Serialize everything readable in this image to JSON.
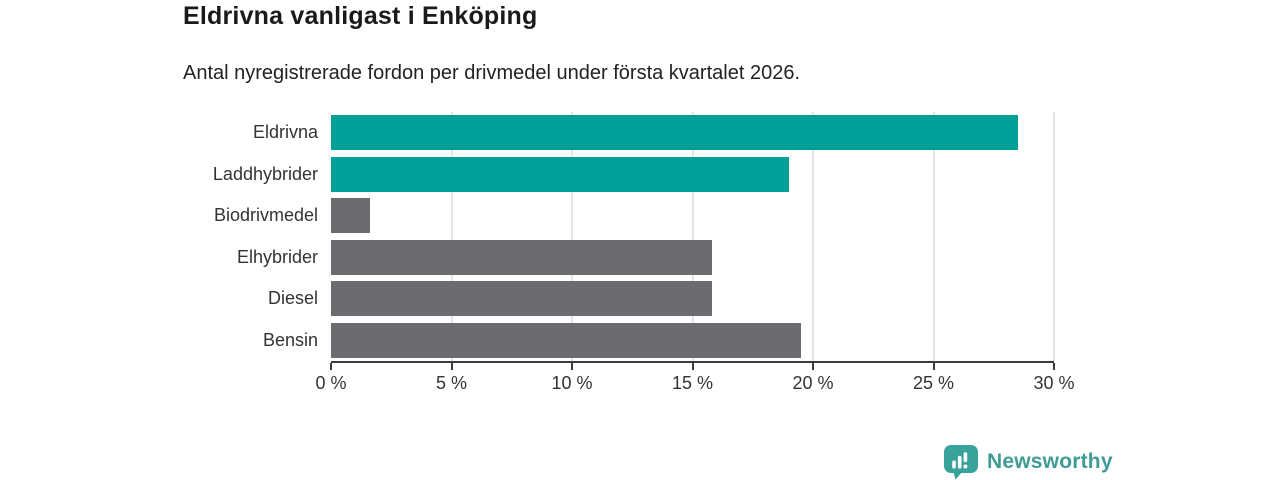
{
  "header": {
    "title": "Eldrivna vanligast i Enköping",
    "subtitle": "Antal nyregistrerade fordon per drivmedel under första kvartalet 2026."
  },
  "chart_data": {
    "type": "bar",
    "orientation": "horizontal",
    "title": "Eldrivna vanligast i Enköping",
    "subtitle": "Antal nyregistrerade fordon per drivmedel under första kvartalet 2026.",
    "categories": [
      "Eldrivna",
      "Laddhybrider",
      "Biodrivmedel",
      "Elhybrider",
      "Diesel",
      "Bensin"
    ],
    "values": [
      28.5,
      19.0,
      1.6,
      15.8,
      15.8,
      19.5
    ],
    "unit": "%",
    "xlabel": "",
    "ylabel": "",
    "xlim": [
      0,
      30
    ],
    "x_tick_step": 5,
    "x_tick_labels": [
      "0 %",
      "5 %",
      "10 %",
      "15 %",
      "20 %",
      "25 %",
      "30 %"
    ],
    "grid": "vertical-only",
    "legend": "none",
    "colors": {
      "highlight": "#00a099",
      "default": "#6c6c70",
      "gridline": "#e4e4e4",
      "axis": "#3b3b3b"
    },
    "bar_colors": [
      "#00a099",
      "#00a099",
      "#6c6c70",
      "#6c6c70",
      "#6c6c70",
      "#6c6c70"
    ]
  },
  "footer": {
    "logo_text": "Newsworthy",
    "icon_color": "#39a39b",
    "icon_glyph_color": "#ffffff",
    "text_color": "#3f9c95"
  }
}
